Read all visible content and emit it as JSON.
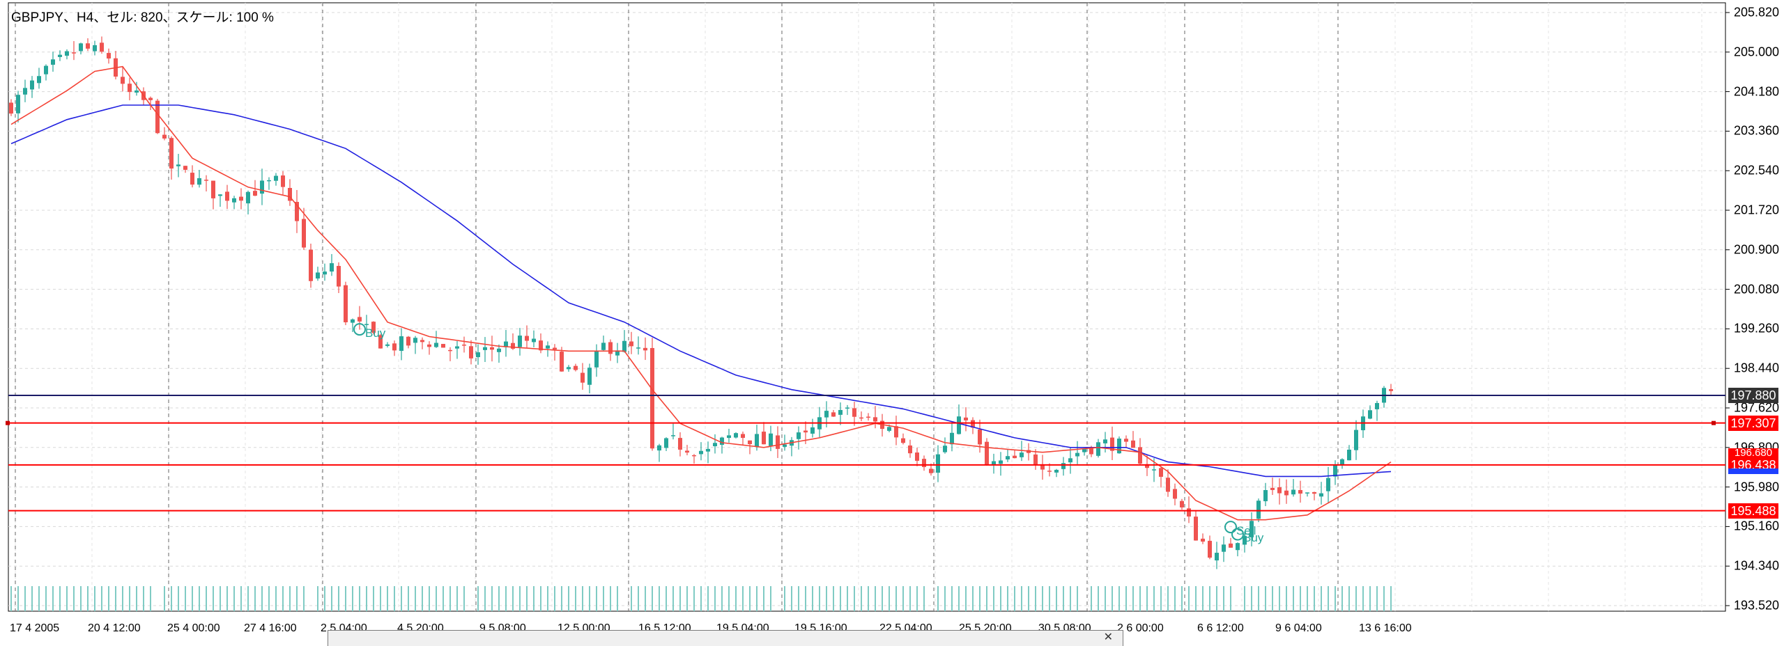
{
  "window": {
    "title": "GBPJPY、H4、セル: 820、スケール: 100 %"
  },
  "colors": {
    "background": "#ffffff",
    "grid": "#d8d8d8",
    "separator": "#7f7f7f",
    "bull_candle": "#26a69a",
    "bear_candle": "#ef5350",
    "volume": "#80cbc4",
    "ma_fast": "#f44336",
    "ma_slow": "#2020e0",
    "bid_line": "#1a1a66",
    "level_line": "#ff0000",
    "tag_bid": "#333333",
    "tag_level": "#ff0000",
    "tag_ma": "#1e40ff",
    "trade_marker": "#26a69a"
  },
  "chart_data": {
    "type": "candlestick",
    "symbol": "GBPJPY",
    "timeframe": "H4",
    "y_ticks": [
      "205.820",
      "205.000",
      "204.180",
      "203.360",
      "202.540",
      "201.720",
      "200.900",
      "200.080",
      "199.260",
      "198.440",
      "197.620",
      "196.800",
      "195.980",
      "195.160",
      "194.340",
      "193.520"
    ],
    "y_range": [
      193.52,
      205.82
    ],
    "x_ticks": [
      "17 4 2005",
      "20 4 12:00",
      "25 4 00:00",
      "27 4 16:00",
      "2 5 04:00",
      "4 5 20:00",
      "9 5 08:00",
      "12 5 00:00",
      "16 5 12:00",
      "19 5 04:00",
      "19 5 16:00",
      "22 5 04:00",
      "25 5 20:00",
      "30 5 08:00",
      "2 6 00:00",
      "6 6 12:00",
      "9 6 04:00",
      "13 6 16:00"
    ],
    "price_levels": [
      {
        "label": "197.880",
        "value": 197.88,
        "kind": "bid"
      },
      {
        "label": "197.307",
        "value": 197.307,
        "kind": "level"
      },
      {
        "label": "196.680",
        "value": 196.68,
        "kind": "level-hidden"
      },
      {
        "label": "196.438",
        "value": 196.438,
        "kind": "level"
      },
      {
        "label": "195.488",
        "value": 195.488,
        "kind": "level"
      }
    ],
    "trades": [
      {
        "label": "Buy",
        "index": 50,
        "price": 199.25
      },
      {
        "label": "Sell",
        "index": 175,
        "price": 195.15
      },
      {
        "label": "Buy",
        "index": 176,
        "price": 195.0
      }
    ],
    "close_path": [
      [
        0,
        203.9
      ],
      [
        6,
        204.7
      ],
      [
        10,
        205.1
      ],
      [
        14,
        204.9
      ],
      [
        16,
        204.2
      ],
      [
        20,
        203.9
      ],
      [
        23,
        202.6
      ],
      [
        26,
        202.4
      ],
      [
        30,
        202.0
      ],
      [
        34,
        202.1
      ],
      [
        38,
        202.3
      ],
      [
        41,
        201.6
      ],
      [
        43,
        200.2
      ],
      [
        46,
        200.6
      ],
      [
        48,
        199.5
      ],
      [
        54,
        198.9
      ],
      [
        60,
        199.0
      ],
      [
        66,
        198.7
      ],
      [
        70,
        198.9
      ],
      [
        74,
        199.0
      ],
      [
        78,
        198.7
      ],
      [
        82,
        198.1
      ],
      [
        85,
        198.9
      ],
      [
        88,
        198.9
      ],
      [
        91,
        198.7
      ],
      [
        92,
        196.7
      ],
      [
        95,
        196.9
      ],
      [
        100,
        196.7
      ],
      [
        104,
        197.1
      ],
      [
        108,
        196.9
      ],
      [
        114,
        197.0
      ],
      [
        118,
        197.6
      ],
      [
        122,
        197.4
      ],
      [
        126,
        197.2
      ],
      [
        132,
        196.4
      ],
      [
        137,
        197.5
      ],
      [
        140,
        196.4
      ],
      [
        146,
        196.6
      ],
      [
        150,
        196.4
      ],
      [
        154,
        196.8
      ],
      [
        158,
        196.9
      ],
      [
        162,
        196.6
      ],
      [
        166,
        196.0
      ],
      [
        170,
        195.0
      ],
      [
        173,
        194.5
      ],
      [
        177,
        195.1
      ],
      [
        180,
        195.9
      ],
      [
        184,
        195.9
      ],
      [
        188,
        195.7
      ],
      [
        190,
        196.6
      ],
      [
        192,
        196.8
      ],
      [
        194,
        197.6
      ],
      [
        197,
        197.9
      ]
    ],
    "ma_fast": [
      [
        0,
        203.5
      ],
      [
        8,
        204.2
      ],
      [
        12,
        204.6
      ],
      [
        16,
        204.7
      ],
      [
        20,
        203.9
      ],
      [
        26,
        202.8
      ],
      [
        34,
        202.2
      ],
      [
        40,
        202.0
      ],
      [
        44,
        201.3
      ],
      [
        48,
        200.7
      ],
      [
        54,
        199.4
      ],
      [
        60,
        199.1
      ],
      [
        70,
        198.9
      ],
      [
        80,
        198.8
      ],
      [
        88,
        198.8
      ],
      [
        92,
        198.0
      ],
      [
        96,
        197.3
      ],
      [
        102,
        196.9
      ],
      [
        108,
        196.8
      ],
      [
        116,
        197.0
      ],
      [
        124,
        197.3
      ],
      [
        128,
        197.2
      ],
      [
        134,
        196.9
      ],
      [
        140,
        196.8
      ],
      [
        148,
        196.7
      ],
      [
        156,
        196.8
      ],
      [
        162,
        196.7
      ],
      [
        166,
        196.3
      ],
      [
        170,
        195.7
      ],
      [
        176,
        195.3
      ],
      [
        180,
        195.3
      ],
      [
        186,
        195.4
      ],
      [
        192,
        195.9
      ],
      [
        198,
        196.5
      ]
    ],
    "ma_slow": [
      [
        0,
        203.1
      ],
      [
        8,
        203.6
      ],
      [
        16,
        203.9
      ],
      [
        24,
        203.9
      ],
      [
        32,
        203.7
      ],
      [
        40,
        203.4
      ],
      [
        48,
        203.0
      ],
      [
        56,
        202.3
      ],
      [
        64,
        201.5
      ],
      [
        72,
        200.6
      ],
      [
        80,
        199.8
      ],
      [
        88,
        199.4
      ],
      [
        96,
        198.8
      ],
      [
        104,
        198.3
      ],
      [
        112,
        198.0
      ],
      [
        120,
        197.8
      ],
      [
        128,
        197.6
      ],
      [
        136,
        197.3
      ],
      [
        144,
        197.0
      ],
      [
        152,
        196.8
      ],
      [
        160,
        196.8
      ],
      [
        166,
        196.5
      ],
      [
        172,
        196.4
      ],
      [
        180,
        196.2
      ],
      [
        188,
        196.2
      ],
      [
        198,
        196.3
      ]
    ]
  }
}
